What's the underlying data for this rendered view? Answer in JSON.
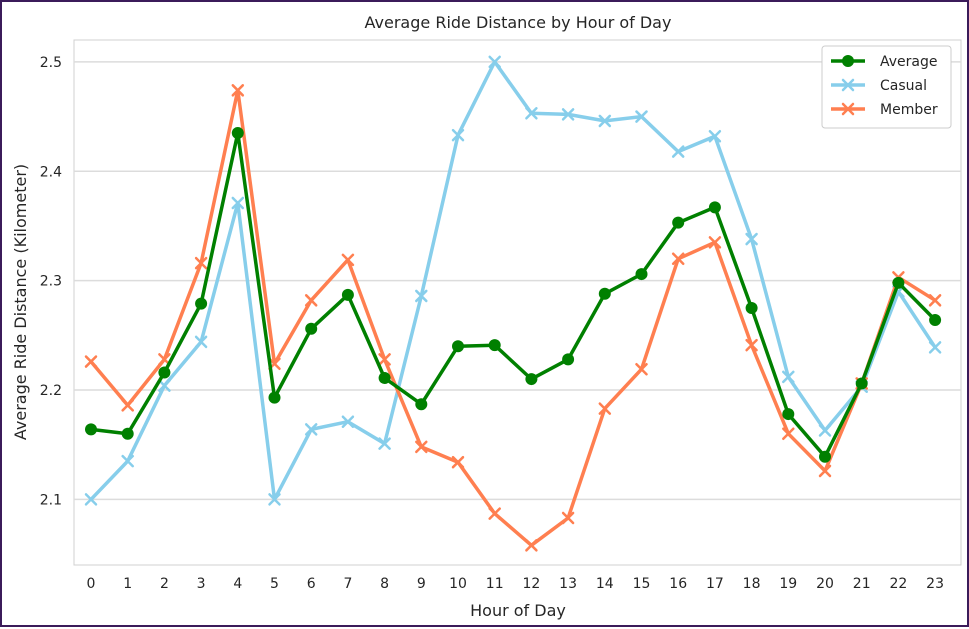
{
  "chart_data": {
    "type": "line",
    "title": "Average Ride Distance by Hour of Day",
    "xlabel": "Hour of Day",
    "ylabel": "Average Ride Distance (Kilometer)",
    "categories": [
      "0",
      "1",
      "2",
      "3",
      "4",
      "5",
      "6",
      "7",
      "8",
      "9",
      "10",
      "11",
      "12",
      "13",
      "14",
      "15",
      "16",
      "17",
      "18",
      "19",
      "20",
      "21",
      "22",
      "23"
    ],
    "ylim": [
      2.04,
      2.52
    ],
    "yticks": [
      "2.1",
      "2.2",
      "2.3",
      "2.4",
      "2.5"
    ],
    "grid": "horizontal",
    "legend_position": "top-right",
    "series": [
      {
        "name": "Average",
        "color": "#008000",
        "marker": "circle",
        "values": [
          2.164,
          2.16,
          2.216,
          2.279,
          2.435,
          2.193,
          2.256,
          2.287,
          2.211,
          2.187,
          2.24,
          2.241,
          2.21,
          2.228,
          2.288,
          2.306,
          2.353,
          2.367,
          2.275,
          2.178,
          2.139,
          2.206,
          2.298,
          2.264
        ]
      },
      {
        "name": "Casual",
        "color": "#87ceeb",
        "marker": "x",
        "values": [
          2.1,
          2.135,
          2.204,
          2.244,
          2.371,
          2.1,
          2.164,
          2.171,
          2.151,
          2.286,
          2.433,
          2.5,
          2.453,
          2.452,
          2.446,
          2.45,
          2.418,
          2.432,
          2.338,
          2.212,
          2.163,
          2.203,
          2.29,
          2.239
        ]
      },
      {
        "name": "Member",
        "color": "#ff7f50",
        "marker": "x",
        "values": [
          2.226,
          2.186,
          2.228,
          2.316,
          2.474,
          2.224,
          2.282,
          2.319,
          2.228,
          2.148,
          2.134,
          2.087,
          2.058,
          2.083,
          2.183,
          2.219,
          2.32,
          2.335,
          2.241,
          2.16,
          2.126,
          2.206,
          2.303,
          2.282
        ]
      }
    ]
  }
}
